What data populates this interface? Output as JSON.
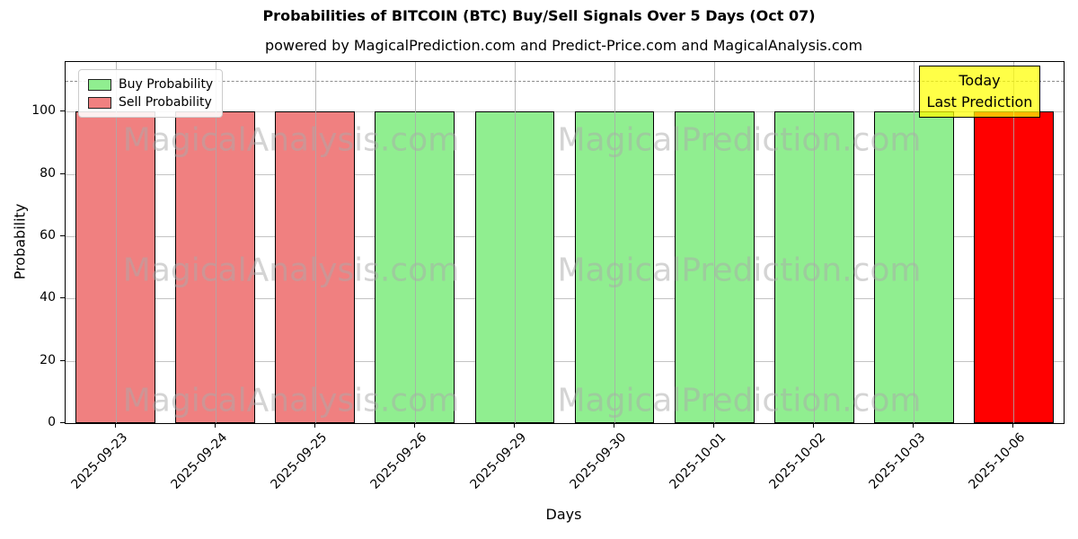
{
  "header": {
    "title": "Probabilities of BITCOIN (BTC) Buy/Sell Signals Over 5 Days (Oct 07)",
    "subtitle": "powered by MagicalPrediction.com and Predict-Price.com and MagicalAnalysis.com"
  },
  "legend": {
    "position": "upper-left",
    "entries": [
      {
        "label": "Buy Probability",
        "color": "#90EE90"
      },
      {
        "label": "Sell Probability",
        "color": "#F08080"
      }
    ]
  },
  "annotation": {
    "line1": "Today",
    "line2": "Last Prediction",
    "bg": "#FFFF00",
    "border": "#000000"
  },
  "watermarks": {
    "left_text": "MagicalAnalysis.com",
    "right_text": "MagicalPrediction.com",
    "color": "#AAAAAA"
  },
  "chart_data": {
    "type": "bar",
    "title": "Probabilities of BITCOIN (BTC) Buy/Sell Signals Over 5 Days (Oct 07)",
    "xlabel": "Days",
    "ylabel": "Probability",
    "categories": [
      "2025-09-23",
      "2025-09-24",
      "2025-09-25",
      "2025-09-26",
      "2025-09-29",
      "2025-09-30",
      "2025-10-01",
      "2025-10-02",
      "2025-10-03",
      "2025-10-06"
    ],
    "values": [
      100,
      100,
      100,
      100,
      100,
      100,
      100,
      100,
      100,
      100
    ],
    "signals": [
      "sell",
      "sell",
      "sell",
      "buy",
      "buy",
      "buy",
      "buy",
      "buy",
      "buy",
      "last-prediction"
    ],
    "bar_colors": [
      "#F08080",
      "#F08080",
      "#F08080",
      "#90EE90",
      "#90EE90",
      "#90EE90",
      "#90EE90",
      "#90EE90",
      "#90EE90",
      "#FF0000"
    ],
    "bar_edge_color": "#000000",
    "yticks": [
      0,
      20,
      40,
      60,
      80,
      100
    ],
    "ylim": [
      0,
      116
    ],
    "grid": true,
    "gridline_color": "#c4c4c4",
    "dashed_line_y": 110,
    "dashed_line_color": "#8c8c8c",
    "legend_position": "upper-left"
  }
}
